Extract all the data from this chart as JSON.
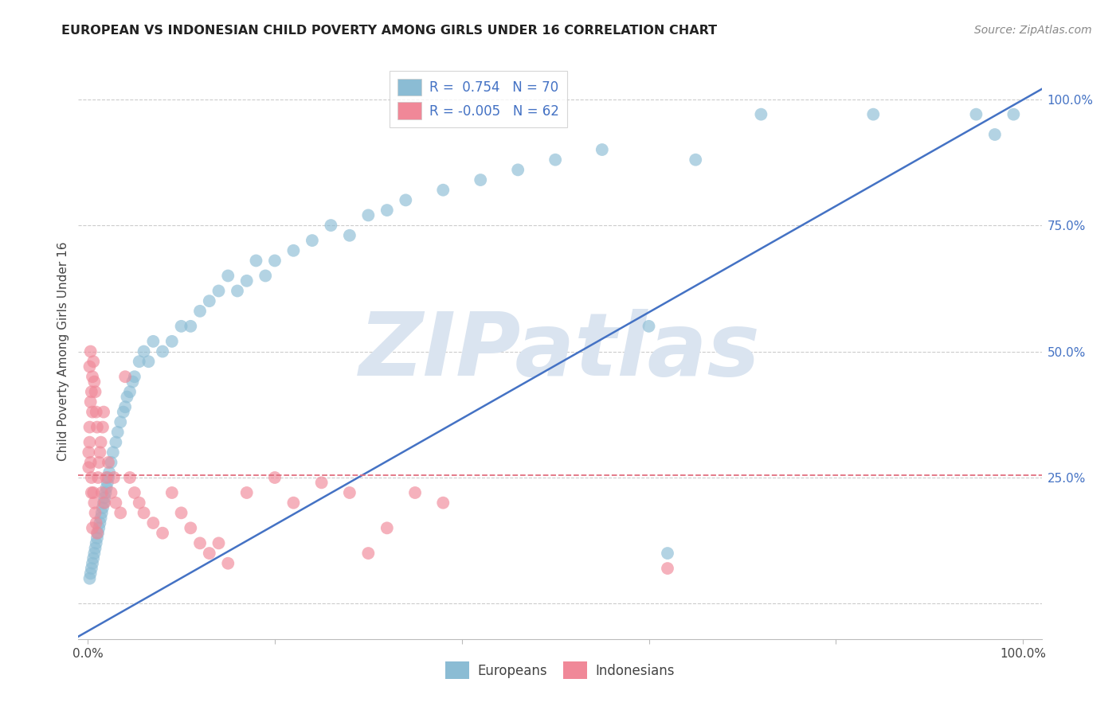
{
  "title": "EUROPEAN VS INDONESIAN CHILD POVERTY AMONG GIRLS UNDER 16 CORRELATION CHART",
  "source": "Source: ZipAtlas.com",
  "ylabel": "Child Poverty Among Girls Under 16",
  "european_color": "#8bbcd4",
  "indonesian_color": "#f08898",
  "trend_european_color": "#4472c4",
  "trend_indonesian_color": "#e07080",
  "watermark_text": "ZIPatlas",
  "watermark_color": "#dae4f0",
  "background_color": "#ffffff",
  "title_fontsize": 11.5,
  "source_fontsize": 10,
  "axis_label_fontsize": 11,
  "tick_fontsize": 11,
  "legend_fontsize": 12,
  "scatter_size": 130,
  "scatter_alpha": 0.65,
  "european_R": 0.754,
  "european_N": 70,
  "indonesian_R": -0.005,
  "indonesian_N": 62,
  "xlim": [
    -0.01,
    1.02
  ],
  "ylim": [
    -0.07,
    1.07
  ],
  "ytick_positions": [
    0.0,
    0.25,
    0.5,
    0.75,
    1.0
  ],
  "ytick_right_labels": [
    "",
    "25.0%",
    "50.0%",
    "75.0%",
    "100.0%"
  ],
  "xtick_positions": [
    0.0,
    0.2,
    0.4,
    0.6,
    0.8,
    1.0
  ],
  "xtick_labels": [
    "0.0%",
    "",
    "",
    "",
    "",
    "100.0%"
  ],
  "eu_trend_x": [
    -0.01,
    1.02
  ],
  "eu_trend_y": [
    -0.065,
    1.02
  ],
  "id_trend_y": 0.255,
  "grid_linestyle": "--",
  "grid_color": "#cccccc",
  "grid_linewidth": 0.8,
  "eu_scatter_x": [
    0.002,
    0.003,
    0.004,
    0.005,
    0.006,
    0.007,
    0.008,
    0.009,
    0.01,
    0.011,
    0.012,
    0.013,
    0.014,
    0.015,
    0.016,
    0.017,
    0.018,
    0.019,
    0.02,
    0.021,
    0.022,
    0.023,
    0.025,
    0.027,
    0.03,
    0.032,
    0.035,
    0.038,
    0.04,
    0.042,
    0.045,
    0.048,
    0.05,
    0.055,
    0.06,
    0.065,
    0.07,
    0.08,
    0.09,
    0.1,
    0.11,
    0.12,
    0.13,
    0.14,
    0.15,
    0.16,
    0.17,
    0.18,
    0.19,
    0.2,
    0.22,
    0.24,
    0.26,
    0.28,
    0.3,
    0.32,
    0.34,
    0.38,
    0.42,
    0.46,
    0.5,
    0.55,
    0.6,
    0.65,
    0.62,
    0.72,
    0.84,
    0.95,
    0.97,
    0.99
  ],
  "eu_scatter_y": [
    0.05,
    0.06,
    0.07,
    0.08,
    0.09,
    0.1,
    0.11,
    0.12,
    0.13,
    0.14,
    0.15,
    0.16,
    0.17,
    0.18,
    0.19,
    0.2,
    0.21,
    0.22,
    0.23,
    0.24,
    0.25,
    0.26,
    0.28,
    0.3,
    0.32,
    0.34,
    0.36,
    0.38,
    0.39,
    0.41,
    0.42,
    0.44,
    0.45,
    0.48,
    0.5,
    0.48,
    0.52,
    0.5,
    0.52,
    0.55,
    0.55,
    0.58,
    0.6,
    0.62,
    0.65,
    0.62,
    0.64,
    0.68,
    0.65,
    0.68,
    0.7,
    0.72,
    0.75,
    0.73,
    0.77,
    0.78,
    0.8,
    0.82,
    0.84,
    0.86,
    0.88,
    0.9,
    0.55,
    0.88,
    0.1,
    0.97,
    0.97,
    0.97,
    0.93,
    0.97
  ],
  "id_scatter_x": [
    0.001,
    0.001,
    0.002,
    0.002,
    0.003,
    0.003,
    0.004,
    0.004,
    0.005,
    0.005,
    0.006,
    0.006,
    0.007,
    0.007,
    0.008,
    0.008,
    0.009,
    0.009,
    0.01,
    0.01,
    0.011,
    0.012,
    0.013,
    0.014,
    0.015,
    0.016,
    0.017,
    0.018,
    0.02,
    0.022,
    0.025,
    0.028,
    0.03,
    0.035,
    0.04,
    0.045,
    0.05,
    0.055,
    0.06,
    0.07,
    0.08,
    0.09,
    0.1,
    0.11,
    0.12,
    0.13,
    0.14,
    0.15,
    0.17,
    0.2,
    0.22,
    0.25,
    0.28,
    0.3,
    0.32,
    0.35,
    0.38,
    0.62,
    0.002,
    0.003,
    0.004,
    0.005
  ],
  "id_scatter_y": [
    0.27,
    0.3,
    0.32,
    0.35,
    0.28,
    0.4,
    0.25,
    0.42,
    0.38,
    0.45,
    0.22,
    0.48,
    0.2,
    0.44,
    0.18,
    0.42,
    0.16,
    0.38,
    0.14,
    0.35,
    0.25,
    0.28,
    0.3,
    0.32,
    0.22,
    0.35,
    0.38,
    0.2,
    0.25,
    0.28,
    0.22,
    0.25,
    0.2,
    0.18,
    0.45,
    0.25,
    0.22,
    0.2,
    0.18,
    0.16,
    0.14,
    0.22,
    0.18,
    0.15,
    0.12,
    0.1,
    0.12,
    0.08,
    0.22,
    0.25,
    0.2,
    0.24,
    0.22,
    0.1,
    0.15,
    0.22,
    0.2,
    0.07,
    0.47,
    0.5,
    0.22,
    0.15
  ]
}
